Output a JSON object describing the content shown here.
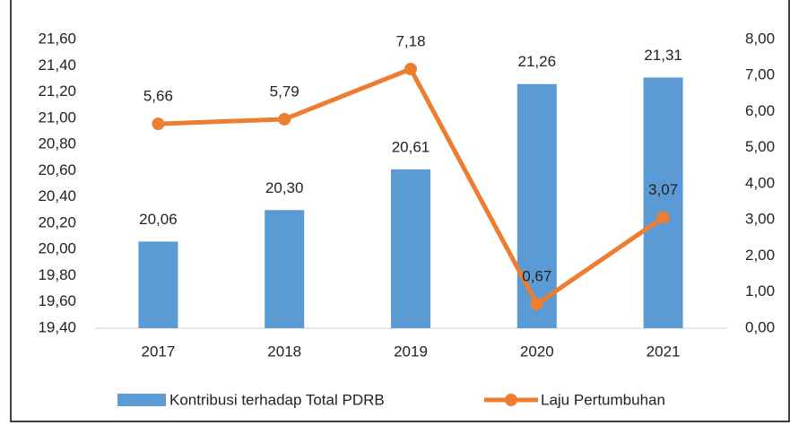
{
  "chart_data": {
    "type": "bar",
    "categories": [
      "2017",
      "2018",
      "2019",
      "2020",
      "2021"
    ],
    "series": [
      {
        "name": "Kontribusi terhadap Total PDRB",
        "type": "bar",
        "color": "#5b9bd5",
        "values": [
          20.06,
          20.3,
          20.61,
          21.26,
          21.31
        ],
        "value_labels": [
          "20,06",
          "20,30",
          "20,61",
          "21,26",
          "21,31"
        ]
      },
      {
        "name": "Laju Pertumbuhan",
        "type": "line",
        "axis": "y2",
        "color": "#ed7d31",
        "values": [
          5.66,
          5.79,
          7.18,
          0.67,
          3.07
        ],
        "value_labels": [
          "5,66",
          "5,79",
          "7,18",
          "0,67",
          "3,07"
        ]
      }
    ],
    "ylim": [
      19.4,
      21.6
    ],
    "yticks": [
      {
        "value": 19.4,
        "label": "19,40"
      },
      {
        "value": 19.6,
        "label": "19,60"
      },
      {
        "value": 19.8,
        "label": "19,80"
      },
      {
        "value": 20.0,
        "label": "20,00"
      },
      {
        "value": 20.2,
        "label": "20,20"
      },
      {
        "value": 20.4,
        "label": "20,40"
      },
      {
        "value": 20.6,
        "label": "20,60"
      },
      {
        "value": 20.8,
        "label": "20,80"
      },
      {
        "value": 21.0,
        "label": "21,00"
      },
      {
        "value": 21.2,
        "label": "21,20"
      },
      {
        "value": 21.4,
        "label": "21,40"
      },
      {
        "value": 21.6,
        "label": "21,60"
      }
    ],
    "y2lim": [
      0,
      8
    ],
    "y2ticks": [
      {
        "value": 0,
        "label": "0,00"
      },
      {
        "value": 1,
        "label": "1,00"
      },
      {
        "value": 2,
        "label": "2,00"
      },
      {
        "value": 3,
        "label": "3,00"
      },
      {
        "value": 4,
        "label": "4,00"
      },
      {
        "value": 5,
        "label": "5,00"
      },
      {
        "value": 6,
        "label": "6,00"
      },
      {
        "value": 7,
        "label": "7,00"
      },
      {
        "value": 8,
        "label": "8,00"
      }
    ],
    "legend": "bottom",
    "grid": false
  }
}
